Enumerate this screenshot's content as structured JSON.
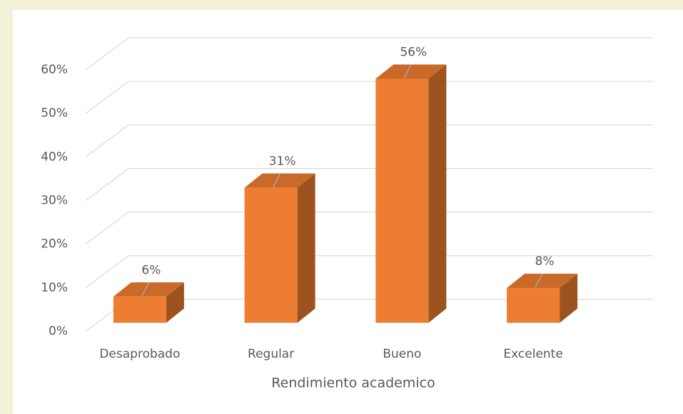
{
  "chart_data": {
    "type": "bar3d",
    "x_label": "Rendimiento academico",
    "categories": [
      "Desaprobado",
      "Regular",
      "Bueno",
      "Excelente"
    ],
    "values": [
      6,
      31,
      56,
      8
    ],
    "value_labels": [
      "6%",
      "31%",
      "56%",
      "8%"
    ],
    "color": "#ed7d31",
    "ylim": [
      0,
      60
    ],
    "yticks": [
      {
        "value": 0,
        "label": "0%"
      },
      {
        "value": 10,
        "label": "10%"
      },
      {
        "value": 20,
        "label": "20%"
      },
      {
        "value": 30,
        "label": "30%"
      },
      {
        "value": 40,
        "label": "40%"
      },
      {
        "value": 50,
        "label": "50%"
      },
      {
        "value": 60,
        "label": "60%"
      }
    ],
    "grid": true
  }
}
